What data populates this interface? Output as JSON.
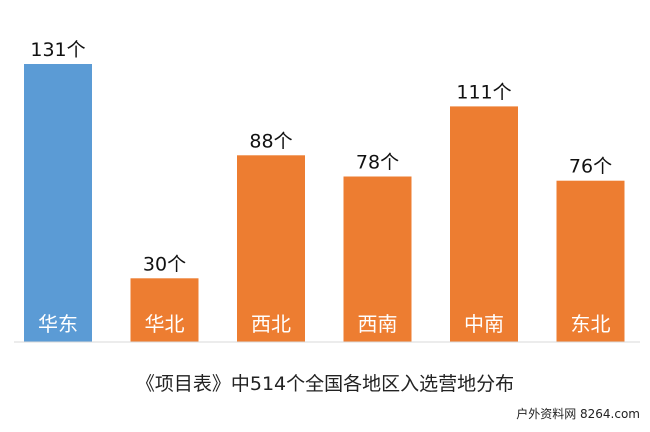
{
  "chart_data": {
    "type": "bar",
    "categories": [
      "华东",
      "华北",
      "西北",
      "西南",
      "中南",
      "东北"
    ],
    "values": [
      131,
      30,
      88,
      78,
      111,
      76
    ],
    "value_labels": [
      "131个",
      "30个",
      "88个",
      "78个",
      "111个",
      "76个"
    ],
    "bar_colors": [
      "#5B9BD5",
      "#ED7D31",
      "#ED7D31",
      "#ED7D31",
      "#ED7D31",
      "#ED7D31"
    ],
    "category_label_color": "#ffffff",
    "title": "《项目表》中514个全国各地区入选营地分布",
    "xlabel": "",
    "ylabel": "",
    "ylim": [
      0,
      131
    ],
    "grid": false,
    "legend": "none"
  },
  "watermark": "户外资料网 8264.com"
}
